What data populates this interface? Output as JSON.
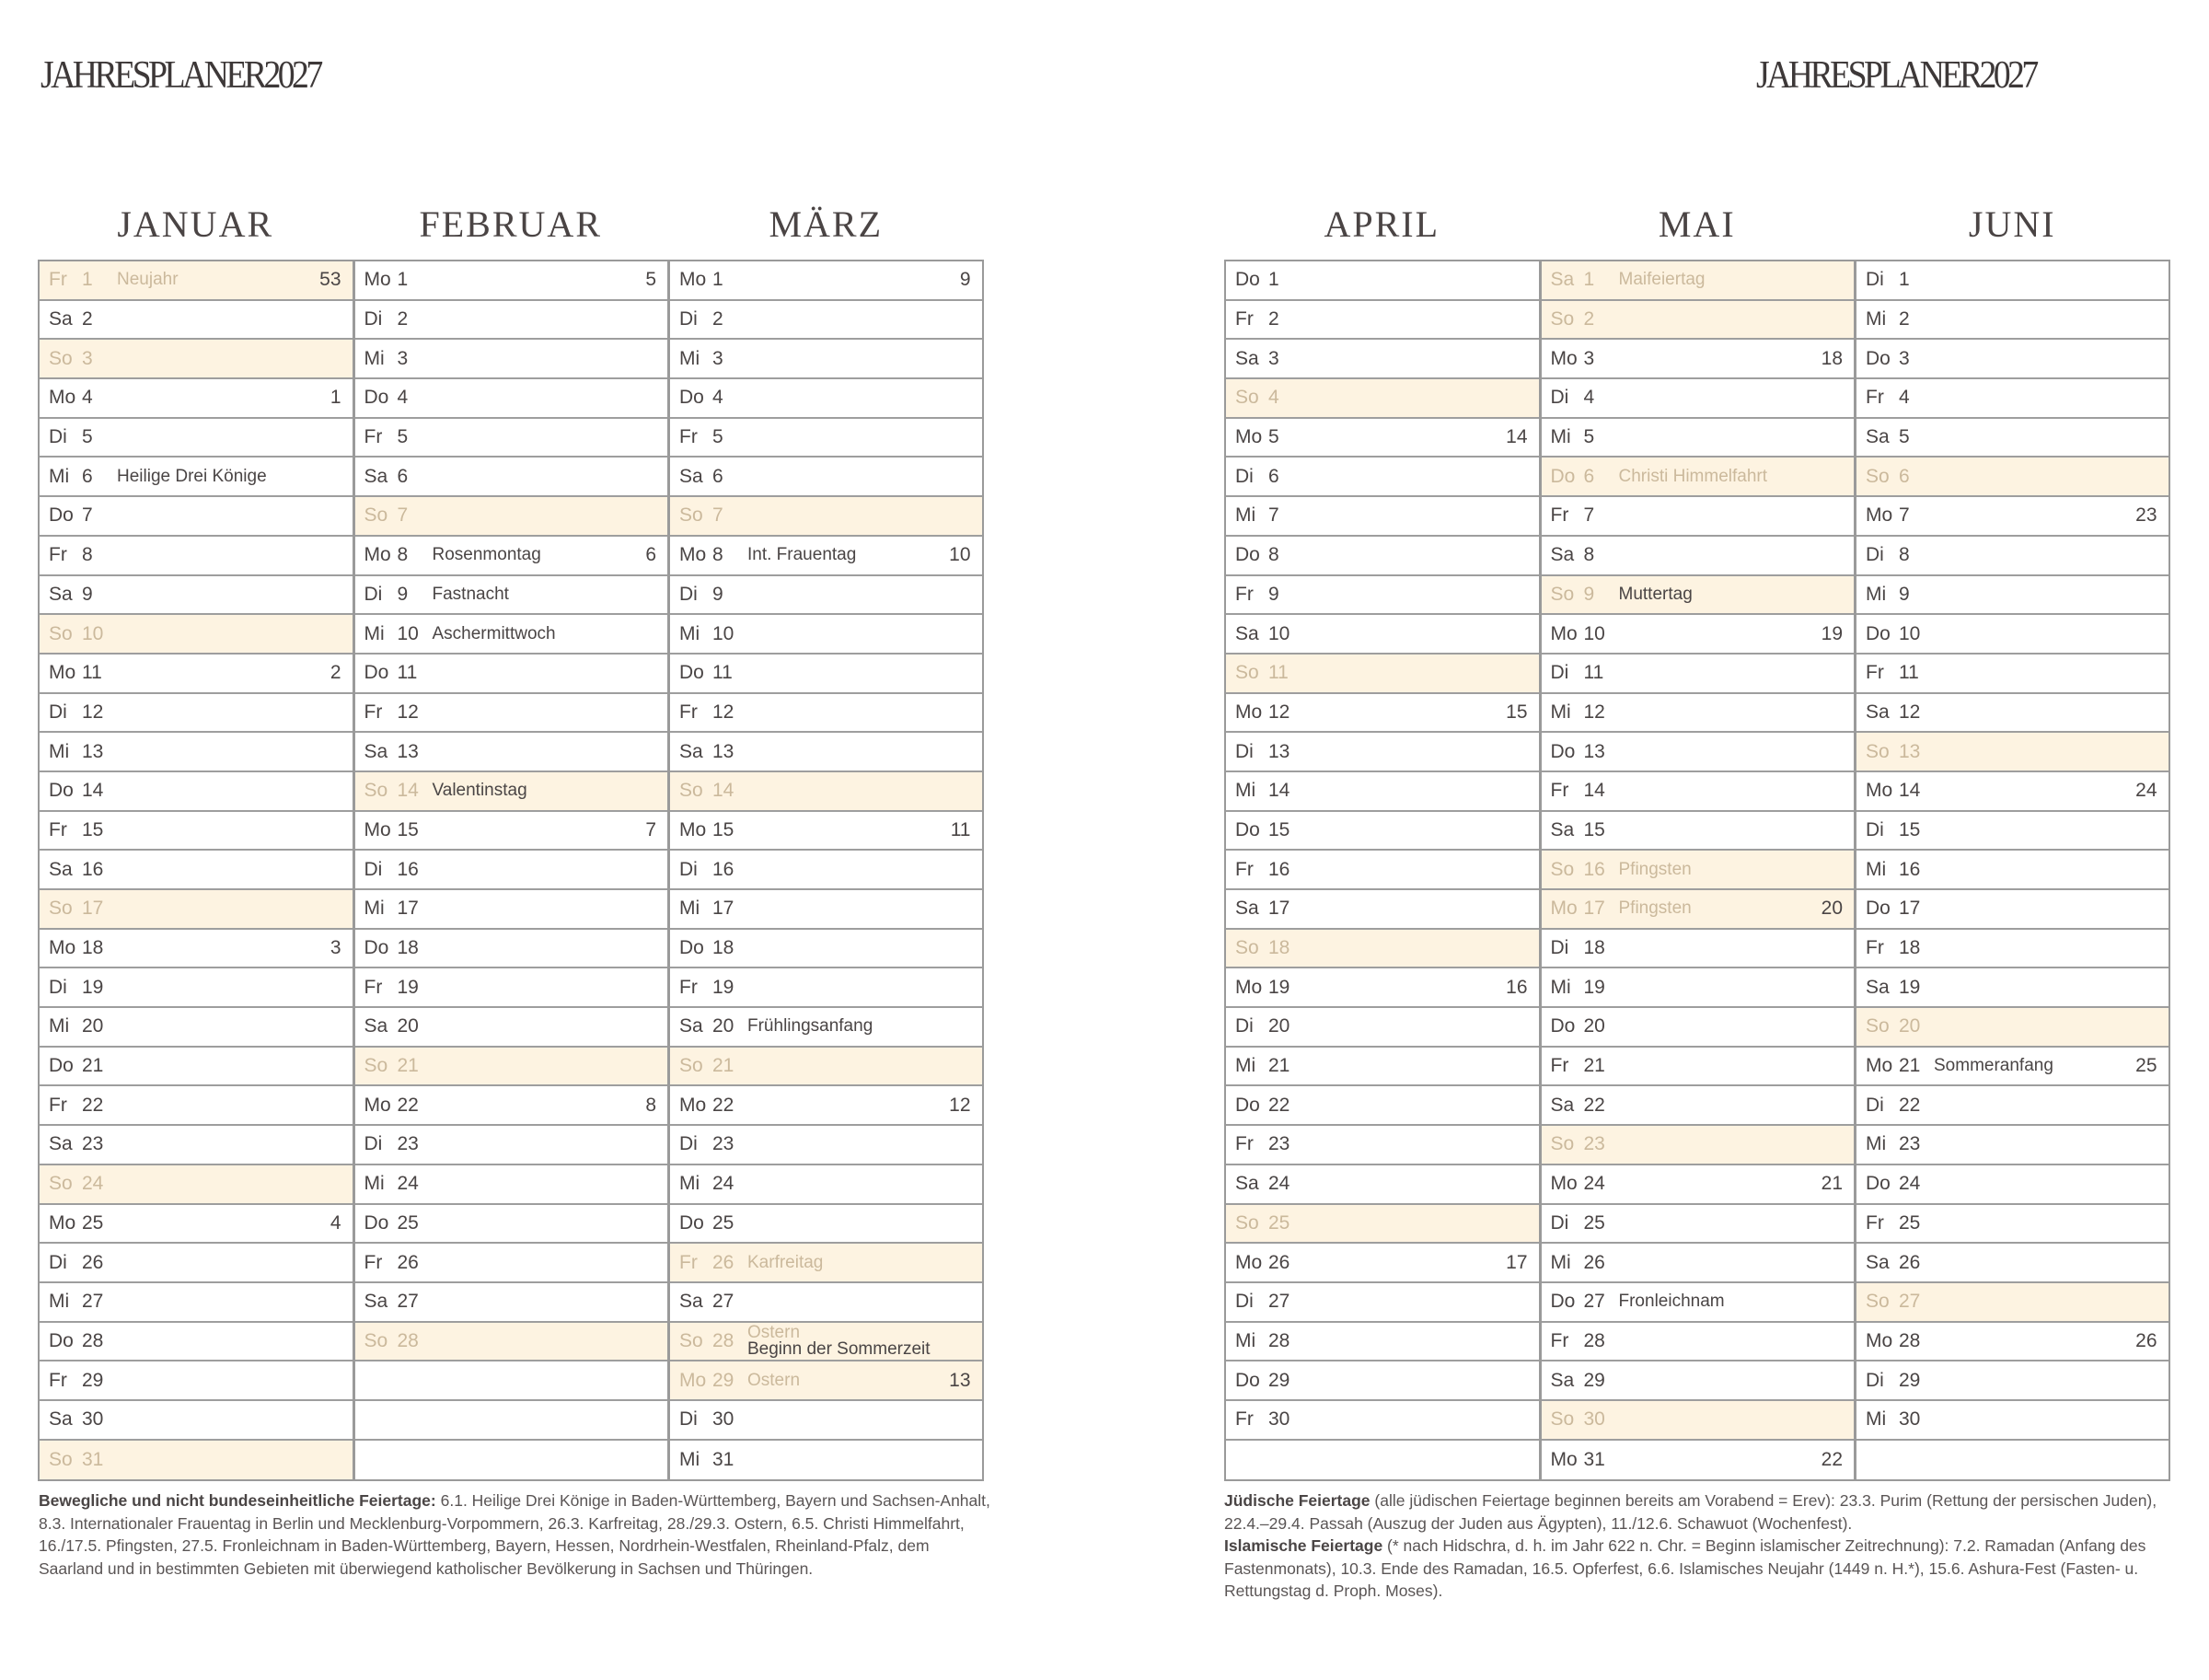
{
  "title": "JAHRESPLANER2027",
  "colors": {
    "highlight_bg": "#fdf3e1",
    "holiday_text": "#cbb99c",
    "text": "#4a4545",
    "grid": "#9a9a9a"
  },
  "months": [
    {
      "name": "JANUAR",
      "days": [
        {
          "wd": "Fr",
          "d": "1",
          "kw": "53",
          "hl": true,
          "notes": [
            {
              "t": "Neujahr",
              "h": true
            }
          ]
        },
        {
          "wd": "Sa",
          "d": "2"
        },
        {
          "wd": "So",
          "d": "3",
          "hl": true
        },
        {
          "wd": "Mo",
          "d": "4",
          "kw": "1"
        },
        {
          "wd": "Di",
          "d": "5"
        },
        {
          "wd": "Mi",
          "d": "6",
          "notes": [
            {
              "t": "Heilige Drei Könige"
            }
          ]
        },
        {
          "wd": "Do",
          "d": "7"
        },
        {
          "wd": "Fr",
          "d": "8"
        },
        {
          "wd": "Sa",
          "d": "9"
        },
        {
          "wd": "So",
          "d": "10",
          "hl": true
        },
        {
          "wd": "Mo",
          "d": "11",
          "kw": "2"
        },
        {
          "wd": "Di",
          "d": "12"
        },
        {
          "wd": "Mi",
          "d": "13"
        },
        {
          "wd": "Do",
          "d": "14"
        },
        {
          "wd": "Fr",
          "d": "15"
        },
        {
          "wd": "Sa",
          "d": "16"
        },
        {
          "wd": "So",
          "d": "17",
          "hl": true
        },
        {
          "wd": "Mo",
          "d": "18",
          "kw": "3"
        },
        {
          "wd": "Di",
          "d": "19"
        },
        {
          "wd": "Mi",
          "d": "20"
        },
        {
          "wd": "Do",
          "d": "21"
        },
        {
          "wd": "Fr",
          "d": "22"
        },
        {
          "wd": "Sa",
          "d": "23"
        },
        {
          "wd": "So",
          "d": "24",
          "hl": true
        },
        {
          "wd": "Mo",
          "d": "25",
          "kw": "4"
        },
        {
          "wd": "Di",
          "d": "26"
        },
        {
          "wd": "Mi",
          "d": "27"
        },
        {
          "wd": "Do",
          "d": "28"
        },
        {
          "wd": "Fr",
          "d": "29"
        },
        {
          "wd": "Sa",
          "d": "30"
        },
        {
          "wd": "So",
          "d": "31",
          "hl": true
        }
      ]
    },
    {
      "name": "FEBRUAR",
      "days": [
        {
          "wd": "Mo",
          "d": "1",
          "kw": "5"
        },
        {
          "wd": "Di",
          "d": "2"
        },
        {
          "wd": "Mi",
          "d": "3"
        },
        {
          "wd": "Do",
          "d": "4"
        },
        {
          "wd": "Fr",
          "d": "5"
        },
        {
          "wd": "Sa",
          "d": "6"
        },
        {
          "wd": "So",
          "d": "7",
          "hl": true
        },
        {
          "wd": "Mo",
          "d": "8",
          "kw": "6",
          "notes": [
            {
              "t": "Rosenmontag"
            }
          ]
        },
        {
          "wd": "Di",
          "d": "9",
          "notes": [
            {
              "t": "Fastnacht"
            }
          ]
        },
        {
          "wd": "Mi",
          "d": "10",
          "notes": [
            {
              "t": "Aschermittwoch"
            }
          ]
        },
        {
          "wd": "Do",
          "d": "11"
        },
        {
          "wd": "Fr",
          "d": "12"
        },
        {
          "wd": "Sa",
          "d": "13"
        },
        {
          "wd": "So",
          "d": "14",
          "hl": true,
          "notes": [
            {
              "t": "Valentinstag"
            }
          ]
        },
        {
          "wd": "Mo",
          "d": "15",
          "kw": "7"
        },
        {
          "wd": "Di",
          "d": "16"
        },
        {
          "wd": "Mi",
          "d": "17"
        },
        {
          "wd": "Do",
          "d": "18"
        },
        {
          "wd": "Fr",
          "d": "19"
        },
        {
          "wd": "Sa",
          "d": "20"
        },
        {
          "wd": "So",
          "d": "21",
          "hl": true
        },
        {
          "wd": "Mo",
          "d": "22",
          "kw": "8"
        },
        {
          "wd": "Di",
          "d": "23"
        },
        {
          "wd": "Mi",
          "d": "24"
        },
        {
          "wd": "Do",
          "d": "25"
        },
        {
          "wd": "Fr",
          "d": "26"
        },
        {
          "wd": "Sa",
          "d": "27"
        },
        {
          "wd": "So",
          "d": "28",
          "hl": true
        }
      ]
    },
    {
      "name": "MÄRZ",
      "days": [
        {
          "wd": "Mo",
          "d": "1",
          "kw": "9"
        },
        {
          "wd": "Di",
          "d": "2"
        },
        {
          "wd": "Mi",
          "d": "3"
        },
        {
          "wd": "Do",
          "d": "4"
        },
        {
          "wd": "Fr",
          "d": "5"
        },
        {
          "wd": "Sa",
          "d": "6"
        },
        {
          "wd": "So",
          "d": "7",
          "hl": true
        },
        {
          "wd": "Mo",
          "d": "8",
          "kw": "10",
          "notes": [
            {
              "t": "Int. Frauentag"
            }
          ]
        },
        {
          "wd": "Di",
          "d": "9"
        },
        {
          "wd": "Mi",
          "d": "10"
        },
        {
          "wd": "Do",
          "d": "11"
        },
        {
          "wd": "Fr",
          "d": "12"
        },
        {
          "wd": "Sa",
          "d": "13"
        },
        {
          "wd": "So",
          "d": "14",
          "hl": true
        },
        {
          "wd": "Mo",
          "d": "15",
          "kw": "11"
        },
        {
          "wd": "Di",
          "d": "16"
        },
        {
          "wd": "Mi",
          "d": "17"
        },
        {
          "wd": "Do",
          "d": "18"
        },
        {
          "wd": "Fr",
          "d": "19"
        },
        {
          "wd": "Sa",
          "d": "20",
          "notes": [
            {
              "t": "Frühlingsanfang"
            }
          ]
        },
        {
          "wd": "So",
          "d": "21",
          "hl": true
        },
        {
          "wd": "Mo",
          "d": "22",
          "kw": "12"
        },
        {
          "wd": "Di",
          "d": "23"
        },
        {
          "wd": "Mi",
          "d": "24"
        },
        {
          "wd": "Do",
          "d": "25"
        },
        {
          "wd": "Fr",
          "d": "26",
          "hl": true,
          "notes": [
            {
              "t": "Karfreitag",
              "h": true
            }
          ]
        },
        {
          "wd": "Sa",
          "d": "27"
        },
        {
          "wd": "So",
          "d": "28",
          "hl": true,
          "notes": [
            {
              "t": "Ostern",
              "h": true
            },
            {
              "t": "Beginn der Sommerzeit"
            }
          ]
        },
        {
          "wd": "Mo",
          "d": "29",
          "kw": "13",
          "hl": true,
          "notes": [
            {
              "t": "Ostern",
              "h": true
            }
          ]
        },
        {
          "wd": "Di",
          "d": "30"
        },
        {
          "wd": "Mi",
          "d": "31"
        }
      ]
    },
    {
      "name": "APRIL",
      "days": [
        {
          "wd": "Do",
          "d": "1"
        },
        {
          "wd": "Fr",
          "d": "2"
        },
        {
          "wd": "Sa",
          "d": "3"
        },
        {
          "wd": "So",
          "d": "4",
          "hl": true
        },
        {
          "wd": "Mo",
          "d": "5",
          "kw": "14"
        },
        {
          "wd": "Di",
          "d": "6"
        },
        {
          "wd": "Mi",
          "d": "7"
        },
        {
          "wd": "Do",
          "d": "8"
        },
        {
          "wd": "Fr",
          "d": "9"
        },
        {
          "wd": "Sa",
          "d": "10"
        },
        {
          "wd": "So",
          "d": "11",
          "hl": true
        },
        {
          "wd": "Mo",
          "d": "12",
          "kw": "15"
        },
        {
          "wd": "Di",
          "d": "13"
        },
        {
          "wd": "Mi",
          "d": "14"
        },
        {
          "wd": "Do",
          "d": "15"
        },
        {
          "wd": "Fr",
          "d": "16"
        },
        {
          "wd": "Sa",
          "d": "17"
        },
        {
          "wd": "So",
          "d": "18",
          "hl": true
        },
        {
          "wd": "Mo",
          "d": "19",
          "kw": "16"
        },
        {
          "wd": "Di",
          "d": "20"
        },
        {
          "wd": "Mi",
          "d": "21"
        },
        {
          "wd": "Do",
          "d": "22"
        },
        {
          "wd": "Fr",
          "d": "23"
        },
        {
          "wd": "Sa",
          "d": "24"
        },
        {
          "wd": "So",
          "d": "25",
          "hl": true
        },
        {
          "wd": "Mo",
          "d": "26",
          "kw": "17"
        },
        {
          "wd": "Di",
          "d": "27"
        },
        {
          "wd": "Mi",
          "d": "28"
        },
        {
          "wd": "Do",
          "d": "29"
        },
        {
          "wd": "Fr",
          "d": "30"
        }
      ]
    },
    {
      "name": "MAI",
      "days": [
        {
          "wd": "Sa",
          "d": "1",
          "hl": true,
          "notes": [
            {
              "t": "Maifeiertag",
              "h": true
            }
          ]
        },
        {
          "wd": "So",
          "d": "2",
          "hl": true
        },
        {
          "wd": "Mo",
          "d": "3",
          "kw": "18"
        },
        {
          "wd": "Di",
          "d": "4"
        },
        {
          "wd": "Mi",
          "d": "5"
        },
        {
          "wd": "Do",
          "d": "6",
          "hl": true,
          "notes": [
            {
              "t": "Christi Himmelfahrt",
              "h": true
            }
          ]
        },
        {
          "wd": "Fr",
          "d": "7"
        },
        {
          "wd": "Sa",
          "d": "8"
        },
        {
          "wd": "So",
          "d": "9",
          "hl": true,
          "notes": [
            {
              "t": "Muttertag"
            }
          ]
        },
        {
          "wd": "Mo",
          "d": "10",
          "kw": "19"
        },
        {
          "wd": "Di",
          "d": "11"
        },
        {
          "wd": "Mi",
          "d": "12"
        },
        {
          "wd": "Do",
          "d": "13"
        },
        {
          "wd": "Fr",
          "d": "14"
        },
        {
          "wd": "Sa",
          "d": "15"
        },
        {
          "wd": "So",
          "d": "16",
          "hl": true,
          "notes": [
            {
              "t": "Pfingsten",
              "h": true
            }
          ]
        },
        {
          "wd": "Mo",
          "d": "17",
          "kw": "20",
          "hl": true,
          "notes": [
            {
              "t": "Pfingsten",
              "h": true
            }
          ]
        },
        {
          "wd": "Di",
          "d": "18"
        },
        {
          "wd": "Mi",
          "d": "19"
        },
        {
          "wd": "Do",
          "d": "20"
        },
        {
          "wd": "Fr",
          "d": "21"
        },
        {
          "wd": "Sa",
          "d": "22"
        },
        {
          "wd": "So",
          "d": "23",
          "hl": true
        },
        {
          "wd": "Mo",
          "d": "24",
          "kw": "21"
        },
        {
          "wd": "Di",
          "d": "25"
        },
        {
          "wd": "Mi",
          "d": "26"
        },
        {
          "wd": "Do",
          "d": "27",
          "notes": [
            {
              "t": "Fronleichnam"
            }
          ]
        },
        {
          "wd": "Fr",
          "d": "28"
        },
        {
          "wd": "Sa",
          "d": "29"
        },
        {
          "wd": "So",
          "d": "30",
          "hl": true
        },
        {
          "wd": "Mo",
          "d": "31",
          "kw": "22"
        }
      ]
    },
    {
      "name": "JUNI",
      "days": [
        {
          "wd": "Di",
          "d": "1"
        },
        {
          "wd": "Mi",
          "d": "2"
        },
        {
          "wd": "Do",
          "d": "3"
        },
        {
          "wd": "Fr",
          "d": "4"
        },
        {
          "wd": "Sa",
          "d": "5"
        },
        {
          "wd": "So",
          "d": "6",
          "hl": true
        },
        {
          "wd": "Mo",
          "d": "7",
          "kw": "23"
        },
        {
          "wd": "Di",
          "d": "8"
        },
        {
          "wd": "Mi",
          "d": "9"
        },
        {
          "wd": "Do",
          "d": "10"
        },
        {
          "wd": "Fr",
          "d": "11"
        },
        {
          "wd": "Sa",
          "d": "12"
        },
        {
          "wd": "So",
          "d": "13",
          "hl": true
        },
        {
          "wd": "Mo",
          "d": "14",
          "kw": "24"
        },
        {
          "wd": "Di",
          "d": "15"
        },
        {
          "wd": "Mi",
          "d": "16"
        },
        {
          "wd": "Do",
          "d": "17"
        },
        {
          "wd": "Fr",
          "d": "18"
        },
        {
          "wd": "Sa",
          "d": "19"
        },
        {
          "wd": "So",
          "d": "20",
          "hl": true
        },
        {
          "wd": "Mo",
          "d": "21",
          "kw": "25",
          "notes": [
            {
              "t": "Sommeranfang"
            }
          ]
        },
        {
          "wd": "Di",
          "d": "22"
        },
        {
          "wd": "Mi",
          "d": "23"
        },
        {
          "wd": "Do",
          "d": "24"
        },
        {
          "wd": "Fr",
          "d": "25"
        },
        {
          "wd": "Sa",
          "d": "26"
        },
        {
          "wd": "So",
          "d": "27",
          "hl": true
        },
        {
          "wd": "Mo",
          "d": "28",
          "kw": "26"
        },
        {
          "wd": "Di",
          "d": "29"
        },
        {
          "wd": "Mi",
          "d": "30"
        }
      ]
    }
  ],
  "footnotes": {
    "left": {
      "heading": "Bewegliche und nicht bundeseinheitliche Feiertage:",
      "text": " 6.1. Heilige Drei Könige in Baden-Württemberg, Bayern und Sachsen-Anhalt, 8.3. Internationaler Frauentag in Berlin und Mecklenburg-Vorpommern, 26.3. Karfreitag, 28./29.3. Ostern, 6.5. Christi Himmelfahrt, 16./17.5. Pfingsten, 27.5. Fronleichnam in Baden-Württemberg, Bayern, Hessen, Nordrhein-Westfalen, Rheinland-Pfalz, dem Saarland und in bestimmten Gebieten mit überwiegend katholischer Bevölkerung in Sachsen und Thüringen."
    },
    "jewish": {
      "heading": "Jüdische Feiertage",
      "text": " (alle jüdischen Feiertage beginnen bereits am Vorabend = Erev): 23.3. Purim (Rettung der persischen Juden), 22.4.–29.4. Passah (Auszug der Juden aus Ägypten), 11./12.6. Schawuot (Wochenfest)."
    },
    "islamic": {
      "heading": "Islamische Feiertage",
      "text": " (* nach Hidschra, d. h. im Jahr 622 n. Chr. = Beginn islamischer Zeitrechnung): 7.2. Ramadan (Anfang des Fastenmonats), 10.3. Ende des Ramadan, 16.5. Opferfest, 6.6. Islamisches Neujahr (1449 n. H.*), 15.6. Ashura-Fest (Fasten- u. Rettungstag d. Proph. Moses)."
    }
  }
}
